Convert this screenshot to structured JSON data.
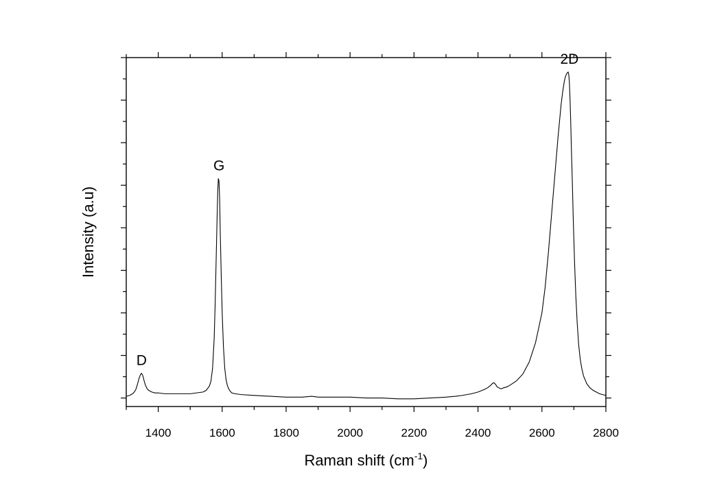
{
  "chart_data": {
    "type": "line",
    "title": "",
    "xlabel": "Raman shift (cm",
    "xlabel_superscript": "-1",
    "xlabel_suffix": ")",
    "ylabel": "Intensity (a.u)",
    "xlim": [
      1300,
      2800
    ],
    "ylim": [
      -0.1,
      4.0
    ],
    "x_ticks": [
      1400,
      1600,
      1800,
      2000,
      2200,
      2400,
      2600,
      2800
    ],
    "y_tick_labels_shown": false,
    "grid": false,
    "legend": "none",
    "series": [
      {
        "x": [
          1300,
          1310,
          1320,
          1325,
          1330,
          1335,
          1340,
          1345,
          1348,
          1352,
          1356,
          1360,
          1365,
          1370,
          1375,
          1380,
          1390,
          1400,
          1420,
          1440,
          1460,
          1480,
          1500,
          1520,
          1540,
          1550,
          1560,
          1565,
          1570,
          1575,
          1578,
          1581,
          1584,
          1586,
          1588,
          1590,
          1592,
          1594,
          1597,
          1600,
          1604,
          1608,
          1612,
          1616,
          1620,
          1625,
          1630,
          1640,
          1660,
          1700,
          1750,
          1800,
          1850,
          1880,
          1900,
          1950,
          2000,
          2050,
          2100,
          2150,
          2200,
          2250,
          2300,
          2330,
          2350,
          2380,
          2400,
          2420,
          2430,
          2440,
          2445,
          2450,
          2455,
          2460,
          2465,
          2470,
          2475,
          2480,
          2490,
          2500,
          2520,
          2540,
          2560,
          2580,
          2600,
          2610,
          2620,
          2630,
          2640,
          2650,
          2655,
          2660,
          2665,
          2670,
          2673,
          2676,
          2679,
          2682,
          2684,
          2686,
          2688,
          2690,
          2692,
          2695,
          2698,
          2702,
          2706,
          2710,
          2715,
          2720,
          2725,
          2730,
          2740,
          2750,
          2760,
          2770,
          2780,
          2790,
          2800
        ],
        "y": [
          0.02,
          0.03,
          0.05,
          0.07,
          0.1,
          0.16,
          0.23,
          0.28,
          0.29,
          0.26,
          0.2,
          0.15,
          0.11,
          0.09,
          0.08,
          0.07,
          0.06,
          0.06,
          0.05,
          0.05,
          0.05,
          0.05,
          0.05,
          0.06,
          0.07,
          0.09,
          0.14,
          0.2,
          0.35,
          0.7,
          1.1,
          1.6,
          2.1,
          2.42,
          2.58,
          2.55,
          2.35,
          1.95,
          1.45,
          1.0,
          0.6,
          0.35,
          0.22,
          0.15,
          0.11,
          0.08,
          0.06,
          0.05,
          0.04,
          0.03,
          0.02,
          0.01,
          0.01,
          0.02,
          0.01,
          0.01,
          0.01,
          0.0,
          0.0,
          -0.01,
          -0.01,
          0.0,
          0.01,
          0.02,
          0.03,
          0.05,
          0.07,
          0.1,
          0.12,
          0.15,
          0.17,
          0.18,
          0.16,
          0.13,
          0.12,
          0.11,
          0.11,
          0.12,
          0.13,
          0.15,
          0.2,
          0.28,
          0.42,
          0.65,
          1.0,
          1.3,
          1.7,
          2.15,
          2.6,
          3.05,
          3.25,
          3.45,
          3.6,
          3.72,
          3.77,
          3.8,
          3.82,
          3.83,
          3.8,
          3.7,
          3.5,
          3.25,
          2.95,
          2.55,
          2.1,
          1.6,
          1.2,
          0.9,
          0.62,
          0.45,
          0.34,
          0.26,
          0.17,
          0.12,
          0.09,
          0.07,
          0.05,
          0.04,
          0.03
        ]
      }
    ],
    "annotations": [
      {
        "text": "D",
        "x": 1348,
        "y": 0.29
      },
      {
        "text": "G",
        "x": 1590,
        "y": 2.58
      },
      {
        "text": "2D",
        "x": 2686,
        "y": 3.83
      }
    ]
  }
}
